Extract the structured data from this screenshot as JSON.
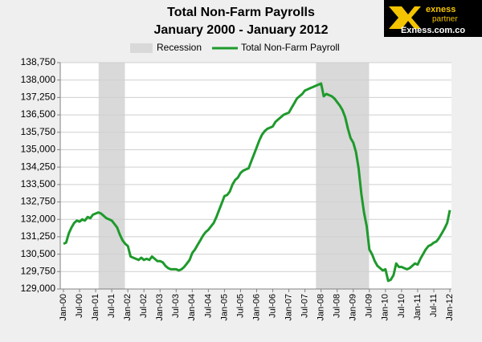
{
  "chart_data": {
    "type": "line",
    "title": "Total Non-Farm Payrolls",
    "subtitle": "January 2000 - January 2012",
    "categories": [
      "Jan-00",
      null,
      null,
      null,
      null,
      null,
      "Jul-00",
      null,
      null,
      null,
      null,
      null,
      "Jan-01",
      null,
      null,
      null,
      null,
      null,
      "Jul-01",
      null,
      null,
      null,
      null,
      null,
      "Jan-02",
      null,
      null,
      null,
      null,
      null,
      "Jul-02",
      null,
      null,
      null,
      null,
      null,
      "Jan-03",
      null,
      null,
      null,
      null,
      null,
      "Jul-03",
      null,
      null,
      null,
      null,
      null,
      "Jan-04",
      null,
      null,
      null,
      null,
      null,
      "Jul-04",
      null,
      null,
      null,
      null,
      null,
      "Jan-05",
      null,
      null,
      null,
      null,
      null,
      "Jul-05",
      null,
      null,
      null,
      null,
      null,
      "Jan-06",
      null,
      null,
      null,
      null,
      null,
      "Jul-06",
      null,
      null,
      null,
      null,
      null,
      "Jan-07",
      null,
      null,
      null,
      null,
      null,
      "Jul-07",
      null,
      null,
      null,
      null,
      null,
      "Jan-08",
      null,
      null,
      null,
      null,
      null,
      "Jul-08",
      null,
      null,
      null,
      null,
      null,
      "Jan-09",
      null,
      null,
      null,
      null,
      null,
      "Jul-09",
      null,
      null,
      null,
      null,
      null,
      "Jan-10",
      null,
      null,
      null,
      null,
      null,
      "Jul-10",
      null,
      null,
      null,
      null,
      null,
      "Jan-11",
      null,
      null,
      null,
      null,
      null,
      "Jul-11",
      null,
      null,
      null,
      null,
      null,
      "Jan-12"
    ],
    "series": [
      {
        "name": "Total Non-Farm Payroll",
        "color": "#1e9a2c",
        "values": [
          130950,
          131000,
          131400,
          131650,
          131850,
          131950,
          131900,
          132000,
          131950,
          132100,
          132050,
          132200,
          132250,
          132300,
          132250,
          132150,
          132050,
          132000,
          131950,
          131800,
          131650,
          131350,
          131100,
          130950,
          130850,
          130400,
          130350,
          130300,
          130250,
          130350,
          130250,
          130300,
          130250,
          130400,
          130300,
          130200,
          130200,
          130150,
          130000,
          129900,
          129850,
          129850,
          129850,
          129800,
          129850,
          129950,
          130100,
          130250,
          130550,
          130700,
          130900,
          131100,
          131300,
          131450,
          131550,
          131700,
          131850,
          132100,
          132400,
          132700,
          133000,
          133050,
          133200,
          133500,
          133700,
          133800,
          134000,
          134100,
          134150,
          134200,
          134500,
          134800,
          135100,
          135400,
          135650,
          135800,
          135900,
          135950,
          136000,
          136200,
          136300,
          136400,
          136500,
          136550,
          136600,
          136800,
          137000,
          137200,
          137300,
          137400,
          137550,
          137600,
          137650,
          137700,
          137750,
          137800,
          137850,
          137300,
          137400,
          137350,
          137300,
          137200,
          137050,
          136900,
          136700,
          136400,
          135900,
          135500,
          135300,
          134900,
          134200,
          133100,
          132300,
          131700,
          130700,
          130500,
          130200,
          130000,
          129900,
          129800,
          129850,
          129350,
          129400,
          129600,
          130100,
          129950,
          129950,
          129900,
          129850,
          129900,
          130000,
          130100,
          130050,
          130300,
          130500,
          130700,
          130850,
          130900,
          131000,
          131050,
          131200,
          131400,
          131600,
          131850,
          132400
        ]
      }
    ],
    "recession": {
      "name": "Recession",
      "color": "#d9d9d9",
      "spans": [
        [
          14,
          22
        ],
        [
          95,
          113
        ]
      ]
    },
    "ylim": [
      129000,
      138750
    ],
    "yticks": [
      {
        "value": 129000,
        "label": "129,000"
      },
      {
        "value": 129750,
        "label": "129,750"
      },
      {
        "value": 130500,
        "label": "130,500"
      },
      {
        "value": 131250,
        "label": "131,250"
      },
      {
        "value": 132000,
        "label": "132,000"
      },
      {
        "value": 132750,
        "label": "132,750"
      },
      {
        "value": 133500,
        "label": "133,500"
      },
      {
        "value": 134250,
        "label": "134,250"
      },
      {
        "value": 135000,
        "label": "135,000"
      },
      {
        "value": 135750,
        "label": "135,750"
      },
      {
        "value": 136500,
        "label": "136,500"
      },
      {
        "value": 137250,
        "label": "137,250"
      },
      {
        "value": 138000,
        "label": "138,000"
      },
      {
        "value": 138750,
        "label": "138,750"
      }
    ],
    "grid": true,
    "legend": "top"
  },
  "branding": {
    "name": "exness",
    "tag": "partner",
    "url": "Exness.com.co"
  }
}
